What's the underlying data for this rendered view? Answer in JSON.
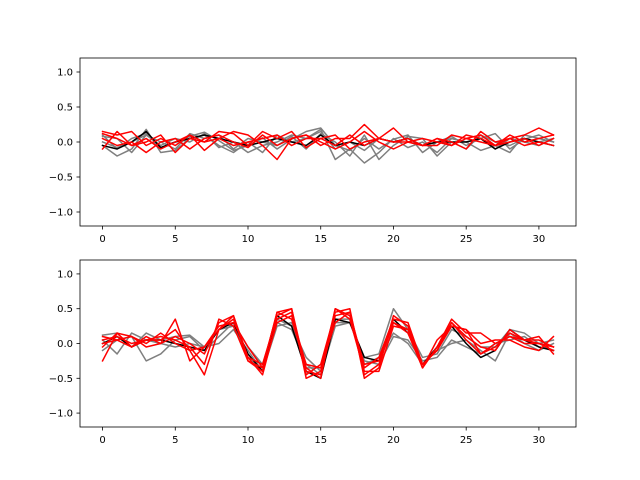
{
  "chart_data": [
    {
      "type": "line",
      "xlim": [
        -1.55,
        32.55
      ],
      "ylim": [
        -1.2,
        1.2
      ],
      "xticks": [
        0,
        5,
        10,
        15,
        20,
        25,
        30
      ],
      "xtick_labels": [
        "0",
        "5",
        "10",
        "15",
        "20",
        "25",
        "30"
      ],
      "yticks": [
        -1.0,
        -0.5,
        0.0,
        0.5,
        1.0
      ],
      "ytick_labels": [
        "−1.0",
        "−0.5",
        "0.0",
        "0.5",
        "1.0"
      ],
      "grid": false,
      "x": [
        0,
        1,
        2,
        3,
        4,
        5,
        6,
        7,
        8,
        9,
        10,
        11,
        12,
        13,
        14,
        15,
        16,
        17,
        18,
        19,
        20,
        21,
        22,
        23,
        24,
        25,
        26,
        27,
        28,
        29,
        30,
        31
      ],
      "series": [
        {
          "color": "#7f7f7f",
          "values": [
            0.1,
            -0.1,
            0.05,
            0.12,
            -0.08,
            0.0,
            0.08,
            0.14,
            0.02,
            -0.12,
            -0.05,
            0.06,
            -0.1,
            0.04,
            0.15,
            0.2,
            -0.05,
            -0.12,
            0.05,
            -0.1,
            0.04,
            0.1,
            -0.15,
            0.0,
            0.08,
            -0.05,
            0.05,
            0.12,
            -0.1,
            0.04,
            0.1,
            0.0
          ]
        },
        {
          "color": "#7f7f7f",
          "values": [
            -0.05,
            -0.2,
            -0.1,
            0.18,
            -0.15,
            -0.12,
            0.05,
            0.1,
            -0.05,
            -0.15,
            0.0,
            -0.15,
            0.1,
            0.0,
            0.05,
            0.18,
            -0.25,
            -0.1,
            -0.3,
            -0.15,
            0.05,
            -0.08,
            0.0,
            -0.15,
            0.05,
            0.0,
            -0.12,
            -0.05,
            -0.15,
            0.1,
            0.05,
            0.0
          ]
        },
        {
          "color": "#7f7f7f",
          "values": [
            0.08,
            0.05,
            -0.15,
            0.1,
            0.0,
            -0.1,
            0.12,
            0.05,
            0.1,
            -0.1,
            0.05,
            0.0,
            -0.05,
            0.08,
            -0.1,
            0.12,
            0.0,
            -0.2,
            0.1,
            -0.25,
            -0.05,
            0.08,
            0.05,
            -0.2,
            0.0,
            -0.1,
            0.1,
            0.0,
            -0.05,
            0.05,
            0.0,
            0.05
          ]
        },
        {
          "color": "#7f7f7f",
          "values": [
            0.0,
            -0.08,
            0.0,
            0.1,
            -0.05,
            0.05,
            0.0,
            0.12,
            -0.08,
            0.0,
            -0.15,
            -0.05,
            0.0,
            0.1,
            0.05,
            0.15,
            -0.1,
            0.0,
            -0.12,
            0.05,
            0.0,
            0.05,
            -0.05,
            0.0,
            0.05,
            0.0,
            0.05,
            -0.1,
            0.05,
            0.0,
            -0.05,
            0.05
          ]
        },
        {
          "color": "#000000",
          "values": [
            -0.05,
            -0.1,
            0.0,
            0.15,
            -0.08,
            0.0,
            0.05,
            0.1,
            0.05,
            0.0,
            -0.05,
            0.0,
            0.05,
            0.0,
            -0.05,
            0.1,
            -0.05,
            0.0,
            -0.05,
            0.05,
            0.0,
            0.05,
            -0.05,
            0.0,
            0.0,
            0.0,
            0.05,
            -0.1,
            0.0,
            0.05,
            0.0,
            -0.05
          ]
        },
        {
          "color": "#ff0000",
          "values": [
            0.15,
            0.1,
            0.15,
            -0.05,
            0.05,
            -0.05,
            0.1,
            -0.12,
            0.05,
            0.15,
            0.1,
            -0.05,
            -0.25,
            0.05,
            0.1,
            -0.05,
            0.05,
            0.05,
            0.25,
            0.05,
            0.2,
            0.0,
            -0.05,
            0.05,
            0.0,
            -0.1,
            0.15,
            0.0,
            0.05,
            0.1,
            0.2,
            0.1
          ]
        },
        {
          "color": "#ff0000",
          "values": [
            -0.1,
            0.15,
            -0.05,
            0.0,
            0.1,
            -0.15,
            0.05,
            0.0,
            0.15,
            0.12,
            -0.05,
            0.15,
            0.05,
            0.15,
            -0.08,
            0.05,
            0.1,
            -0.1,
            0.0,
            0.05,
            0.0,
            0.05,
            -0.05,
            -0.05,
            0.1,
            0.05,
            0.1,
            -0.05,
            0.0,
            0.05,
            -0.05,
            0.05
          ]
        },
        {
          "color": "#ff0000",
          "values": [
            0.05,
            -0.05,
            0.0,
            -0.15,
            0.0,
            0.05,
            -0.1,
            0.05,
            0.1,
            0.0,
            -0.08,
            0.1,
            -0.05,
            0.05,
            0.1,
            0.0,
            -0.1,
            0.0,
            0.15,
            0.0,
            -0.1,
            0.0,
            -0.05,
            0.05,
            -0.05,
            0.1,
            0.05,
            -0.05,
            0.1,
            0.0,
            0.05,
            0.1
          ]
        },
        {
          "color": "#ff0000",
          "values": [
            0.12,
            0.05,
            -0.05,
            0.05,
            -0.1,
            0.0,
            0.1,
            0.0,
            0.05,
            -0.05,
            0.0,
            0.05,
            0.1,
            -0.05,
            0.05,
            0.05,
            -0.05,
            0.1,
            -0.05,
            0.05,
            0.0,
            0.0,
            0.05,
            0.0,
            -0.05,
            0.05,
            0.0,
            -0.05,
            0.05,
            -0.05,
            0.0,
            -0.05
          ]
        }
      ]
    },
    {
      "type": "line",
      "xlim": [
        -1.55,
        32.55
      ],
      "ylim": [
        -1.2,
        1.2
      ],
      "xticks": [
        0,
        5,
        10,
        15,
        20,
        25,
        30
      ],
      "xtick_labels": [
        "0",
        "5",
        "10",
        "15",
        "20",
        "25",
        "30"
      ],
      "yticks": [
        -1.0,
        -0.5,
        0.0,
        0.5,
        1.0
      ],
      "ytick_labels": [
        "−1.0",
        "−0.5",
        "0.0",
        "0.5",
        "1.0"
      ],
      "grid": false,
      "x": [
        0,
        1,
        2,
        3,
        4,
        5,
        6,
        7,
        8,
        9,
        10,
        11,
        12,
        13,
        14,
        15,
        16,
        17,
        18,
        19,
        20,
        21,
        22,
        23,
        24,
        25,
        26,
        27,
        28,
        29,
        30,
        31
      ],
      "series": [
        {
          "color": "#7f7f7f",
          "values": [
            0.12,
            0.15,
            -0.05,
            0.15,
            0.05,
            0.1,
            0.12,
            -0.05,
            0.2,
            0.25,
            -0.2,
            -0.4,
            0.25,
            0.3,
            -0.35,
            -0.35,
            0.3,
            0.3,
            -0.2,
            -0.15,
            0.5,
            0.2,
            -0.2,
            -0.15,
            0.2,
            0.1,
            -0.05,
            -0.05,
            0.2,
            0.15,
            0.0,
            0.05
          ]
        },
        {
          "color": "#7f7f7f",
          "values": [
            -0.1,
            0.05,
            0.1,
            -0.25,
            -0.15,
            0.05,
            0.1,
            -0.1,
            0.1,
            0.3,
            -0.05,
            -0.3,
            0.35,
            0.25,
            -0.2,
            -0.4,
            0.35,
            0.35,
            -0.3,
            -0.2,
            0.15,
            0.0,
            -0.3,
            -0.1,
            0.0,
            0.05,
            -0.1,
            -0.25,
            0.15,
            0.0,
            -0.1,
            0.0
          ]
        },
        {
          "color": "#7f7f7f",
          "values": [
            0.05,
            -0.15,
            0.15,
            0.05,
            0.0,
            -0.05,
            0.0,
            -0.05,
            0.0,
            0.2,
            -0.1,
            -0.4,
            0.3,
            0.2,
            -0.3,
            -0.45,
            0.25,
            0.3,
            -0.25,
            -0.3,
            0.1,
            0.05,
            -0.25,
            -0.2,
            0.05,
            -0.05,
            -0.15,
            0.0,
            0.05,
            0.1,
            -0.05,
            -0.1
          ]
        },
        {
          "color": "#000000",
          "values": [
            0.0,
            0.1,
            -0.05,
            0.05,
            0.05,
            0.0,
            -0.05,
            -0.1,
            0.2,
            0.3,
            -0.15,
            -0.4,
            0.4,
            0.25,
            -0.4,
            -0.5,
            0.35,
            0.3,
            -0.2,
            -0.25,
            0.35,
            0.15,
            -0.3,
            -0.05,
            0.25,
            0.0,
            -0.2,
            -0.1,
            0.2,
            0.05,
            -0.05,
            -0.1
          ]
        },
        {
          "color": "#ff0000",
          "values": [
            -0.25,
            0.15,
            0.1,
            -0.05,
            0.0,
            0.35,
            -0.25,
            -0.05,
            0.25,
            0.3,
            -0.05,
            -0.35,
            0.45,
            0.5,
            -0.5,
            -0.4,
            0.5,
            0.4,
            -0.3,
            -0.25,
            0.3,
            0.2,
            -0.35,
            -0.05,
            0.35,
            0.15,
            0.15,
            0.0,
            0.1,
            0.05,
            0.1,
            -0.15
          ]
        },
        {
          "color": "#ff0000",
          "values": [
            0.0,
            0.05,
            0.1,
            0.0,
            0.15,
            0.0,
            -0.1,
            -0.45,
            0.2,
            0.4,
            -0.2,
            -0.45,
            0.35,
            0.45,
            -0.45,
            -0.3,
            0.45,
            0.5,
            -0.5,
            -0.35,
            0.4,
            0.25,
            -0.35,
            0.05,
            0.25,
            0.2,
            -0.15,
            0.0,
            0.1,
            0.0,
            0.0,
            -0.05
          ]
        },
        {
          "color": "#ff0000",
          "values": [
            0.05,
            0.1,
            0.0,
            0.05,
            0.1,
            0.05,
            -0.05,
            -0.3,
            0.35,
            0.25,
            -0.25,
            -0.35,
            0.45,
            0.35,
            -0.35,
            -0.5,
            0.5,
            0.35,
            -0.4,
            -0.4,
            0.25,
            0.2,
            -0.3,
            -0.1,
            0.3,
            0.05,
            -0.15,
            -0.05,
            0.15,
            0.05,
            0.05,
            -0.05
          ]
        },
        {
          "color": "#ff0000",
          "values": [
            -0.05,
            0.15,
            -0.05,
            0.05,
            0.05,
            0.2,
            -0.1,
            -0.05,
            0.2,
            0.35,
            -0.2,
            -0.3,
            0.4,
            0.5,
            -0.4,
            -0.45,
            0.4,
            0.45,
            -0.35,
            -0.2,
            0.35,
            0.3,
            -0.3,
            -0.1,
            0.25,
            0.2,
            0.0,
            0.05,
            0.05,
            -0.05,
            -0.1,
            0.1
          ]
        },
        {
          "color": "#ff0000",
          "values": [
            0.1,
            0.05,
            -0.05,
            0.1,
            0.0,
            0.1,
            0.0,
            -0.15,
            0.3,
            0.4,
            -0.25,
            -0.4,
            0.3,
            0.4,
            -0.3,
            -0.35,
            0.3,
            0.45,
            -0.45,
            -0.3,
            0.3,
            0.15,
            -0.35,
            -0.05,
            0.3,
            0.1,
            -0.05,
            -0.1,
            0.2,
            0.05,
            0.0,
            -0.1
          ]
        }
      ]
    }
  ]
}
